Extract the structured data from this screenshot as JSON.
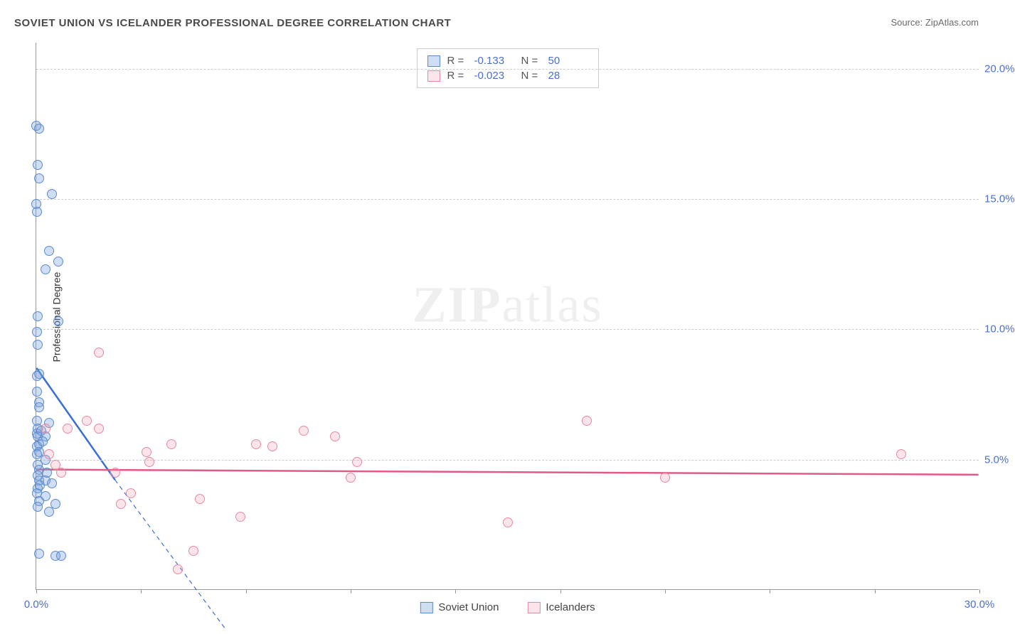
{
  "title": "SOVIET UNION VS ICELANDER PROFESSIONAL DEGREE CORRELATION CHART",
  "source_label": "Source: ZipAtlas.com",
  "ylabel": "Professional Degree",
  "watermark_bold": "ZIP",
  "watermark_light": "atlas",
  "chart": {
    "type": "scatter",
    "background_color": "#ffffff",
    "grid_color": "#cccccc",
    "axis_color": "#999999",
    "tick_label_color": "#4a6fd4",
    "title_color": "#4a4a4a",
    "title_fontsize": 15,
    "label_fontsize": 15,
    "xlim": [
      0,
      30
    ],
    "ylim": [
      0,
      21
    ],
    "x_ticks": [
      0,
      3.33,
      6.67,
      10,
      13.33,
      16.67,
      20,
      23.33,
      26.67,
      30
    ],
    "x_tick_labels": {
      "0": "0.0%",
      "30": "30.0%"
    },
    "y_ticks": [
      5,
      10,
      15,
      20
    ],
    "y_tick_labels": {
      "5": "5.0%",
      "10": "10.0%",
      "15": "15.0%",
      "20": "20.0%"
    },
    "marker_radius": 7,
    "marker_border_width": 1.5,
    "series": [
      {
        "key": "soviet",
        "name": "Soviet Union",
        "color_fill": "rgba(120,160,220,0.35)",
        "color_border": "#5a8ad0",
        "R": "-0.133",
        "N": "50",
        "trend": {
          "x1": 0,
          "y1": 8.5,
          "x2": 2.5,
          "y2": 4.2,
          "dash_x2": 6.0,
          "dash_y2": -1.5,
          "color": "#3a6fd4",
          "width": 2.5
        },
        "points": [
          [
            0.0,
            17.8
          ],
          [
            0.1,
            17.7
          ],
          [
            0.05,
            16.3
          ],
          [
            0.1,
            15.8
          ],
          [
            0.5,
            15.2
          ],
          [
            0.0,
            14.8
          ],
          [
            0.02,
            14.5
          ],
          [
            0.4,
            13.0
          ],
          [
            0.7,
            12.6
          ],
          [
            0.3,
            12.3
          ],
          [
            0.05,
            10.5
          ],
          [
            0.7,
            10.3
          ],
          [
            0.02,
            9.9
          ],
          [
            0.05,
            9.4
          ],
          [
            0.1,
            8.3
          ],
          [
            0.02,
            8.2
          ],
          [
            0.02,
            7.6
          ],
          [
            0.1,
            7.2
          ],
          [
            0.08,
            7.0
          ],
          [
            0.4,
            6.4
          ],
          [
            0.05,
            6.2
          ],
          [
            0.02,
            6.0
          ],
          [
            0.05,
            5.9
          ],
          [
            0.3,
            5.9
          ],
          [
            0.1,
            5.6
          ],
          [
            0.02,
            5.5
          ],
          [
            0.1,
            5.3
          ],
          [
            0.3,
            5.0
          ],
          [
            0.05,
            4.8
          ],
          [
            0.08,
            4.6
          ],
          [
            0.05,
            4.4
          ],
          [
            0.1,
            4.2
          ],
          [
            0.3,
            4.2
          ],
          [
            0.5,
            4.1
          ],
          [
            0.05,
            3.9
          ],
          [
            0.02,
            3.7
          ],
          [
            0.3,
            3.6
          ],
          [
            0.1,
            3.4
          ],
          [
            0.05,
            3.2
          ],
          [
            0.6,
            3.3
          ],
          [
            0.4,
            3.0
          ],
          [
            0.1,
            1.4
          ],
          [
            0.6,
            1.3
          ],
          [
            0.8,
            1.3
          ],
          [
            0.02,
            6.5
          ],
          [
            0.02,
            5.2
          ],
          [
            0.15,
            6.1
          ],
          [
            0.2,
            5.7
          ],
          [
            0.35,
            4.5
          ],
          [
            0.12,
            4.0
          ]
        ]
      },
      {
        "key": "iceland",
        "name": "Icelanders",
        "color_fill": "rgba(240,150,170,0.25)",
        "color_border": "#e58aa0",
        "R": "-0.023",
        "N": "28",
        "trend": {
          "x1": 0,
          "y1": 4.6,
          "x2": 30,
          "y2": 4.4,
          "color": "#e05a88",
          "width": 2.5
        },
        "points": [
          [
            2.0,
            9.1
          ],
          [
            0.3,
            6.2
          ],
          [
            0.4,
            5.2
          ],
          [
            0.6,
            4.8
          ],
          [
            0.8,
            4.5
          ],
          [
            1.6,
            6.5
          ],
          [
            2.0,
            6.2
          ],
          [
            2.5,
            4.5
          ],
          [
            2.7,
            3.3
          ],
          [
            3.0,
            3.7
          ],
          [
            3.5,
            5.3
          ],
          [
            3.6,
            4.9
          ],
          [
            4.3,
            5.6
          ],
          [
            4.5,
            0.8
          ],
          [
            5.0,
            1.5
          ],
          [
            5.2,
            3.5
          ],
          [
            6.5,
            2.8
          ],
          [
            7.0,
            5.6
          ],
          [
            7.5,
            5.5
          ],
          [
            8.5,
            6.1
          ],
          [
            9.5,
            5.9
          ],
          [
            10.0,
            4.3
          ],
          [
            10.2,
            4.9
          ],
          [
            15.0,
            2.6
          ],
          [
            17.5,
            6.5
          ],
          [
            20.0,
            4.3
          ],
          [
            27.5,
            5.2
          ],
          [
            1.0,
            6.2
          ]
        ]
      }
    ],
    "legend_top": {
      "R_label": "R  =",
      "N_label": "N  ="
    },
    "legend_bottom_labels": [
      "Soviet Union",
      "Icelanders"
    ]
  }
}
